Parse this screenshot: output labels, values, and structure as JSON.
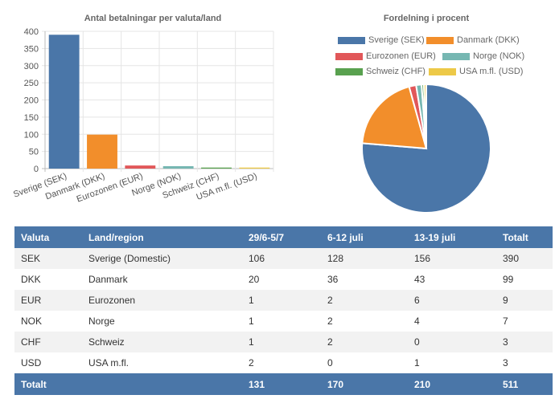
{
  "chart_data": [
    {
      "type": "bar",
      "title": "Antal betalningar per valuta/land",
      "categories": [
        "Sverige (SEK)",
        "Danmark (DKK)",
        "Eurozonen (EUR)",
        "Norge (NOK)",
        "Schweiz (CHF)",
        "USA m.fl. (USD)"
      ],
      "values": [
        390,
        99,
        9,
        7,
        3,
        3
      ],
      "colors": [
        "#4a76a8",
        "#f28e2b",
        "#e15759",
        "#76b7b2",
        "#59a14f",
        "#edc948"
      ],
      "ylim": [
        0,
        400
      ],
      "yticks": [
        0,
        50,
        100,
        150,
        200,
        250,
        300,
        350,
        400
      ],
      "grid": true
    },
    {
      "type": "pie",
      "title": "Fordelning i procent",
      "labels": [
        "Sverige (SEK)",
        "Danmark (DKK)",
        "Eurozonen (EUR)",
        "Norge (NOK)",
        "Schweiz (CHF)",
        "USA m.fl. (USD)"
      ],
      "values": [
        390,
        99,
        9,
        7,
        3,
        3
      ],
      "colors": [
        "#4a76a8",
        "#f28e2b",
        "#e15759",
        "#76b7b2",
        "#59a14f",
        "#edc948"
      ],
      "legend": "top"
    }
  ],
  "table": {
    "headers": [
      "Valuta",
      "Land/region",
      "29/6-5/7",
      "6-12 juli",
      "13-19 juli",
      "Totalt"
    ],
    "rows": [
      [
        "SEK",
        "Sverige (Domestic)",
        "106",
        "128",
        "156",
        "390"
      ],
      [
        "DKK",
        "Danmark",
        "20",
        "36",
        "43",
        "99"
      ],
      [
        "EUR",
        "Eurozonen",
        "1",
        "2",
        "6",
        "9"
      ],
      [
        "NOK",
        "Norge",
        "1",
        "2",
        "4",
        "7"
      ],
      [
        "CHF",
        "Schweiz",
        "1",
        "2",
        "0",
        "3"
      ],
      [
        "USD",
        "USA m.fl.",
        "2",
        "0",
        "1",
        "3"
      ]
    ],
    "footer": [
      "Totalt",
      "",
      "131",
      "170",
      "210",
      "511"
    ]
  }
}
